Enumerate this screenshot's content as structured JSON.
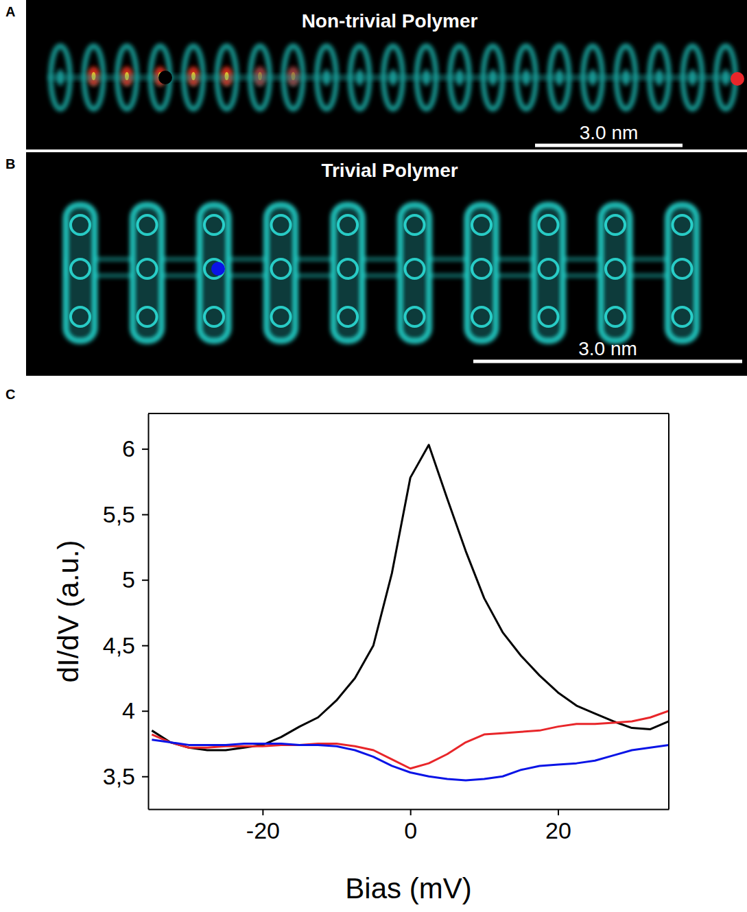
{
  "panels": [
    {
      "label": "A",
      "title": "Non-trivial Polymer",
      "scale_bar": "3.0 nm"
    },
    {
      "label": "B",
      "title": "Trivial Polymer",
      "scale_bar": "3.0 nm"
    }
  ],
  "chart_data": {
    "type": "line",
    "panel_label": "C",
    "x_label": "Bias (mV)",
    "y_label": "dI/dV (a.u.)",
    "x": [
      -35,
      -32.5,
      -30,
      -27.5,
      -25,
      -22.5,
      -20,
      -17.5,
      -15,
      -12.5,
      -10,
      -7.5,
      -5,
      -2.5,
      0,
      2.5,
      5,
      7.5,
      10,
      12.5,
      15,
      17.5,
      20,
      22.5,
      25,
      27.5,
      30,
      32.5,
      35
    ],
    "xlim": [
      -35.5,
      35
    ],
    "xticks": [
      -20,
      0,
      20
    ],
    "ylim": [
      3.25,
      6.27
    ],
    "yticks": [
      {
        "value": 3.5,
        "label": "3,5"
      },
      4,
      {
        "value": 4.5,
        "label": "4,5"
      },
      5,
      {
        "value": 5.5,
        "label": "5,5"
      },
      6
    ],
    "grid": false,
    "series": [
      {
        "color": "#000000",
        "values": [
          3.85,
          3.76,
          3.72,
          3.7,
          3.7,
          3.72,
          3.74,
          3.8,
          3.88,
          3.95,
          4.08,
          4.25,
          4.5,
          5.05,
          5.78,
          6.03,
          5.62,
          5.22,
          4.86,
          4.6,
          4.42,
          4.27,
          4.14,
          4.04,
          3.98,
          3.92,
          3.87,
          3.86,
          3.92
        ]
      },
      {
        "color": "#e8262a",
        "values": [
          3.82,
          3.76,
          3.72,
          3.72,
          3.73,
          3.73,
          3.73,
          3.74,
          3.74,
          3.75,
          3.75,
          3.73,
          3.7,
          3.63,
          3.56,
          3.6,
          3.67,
          3.76,
          3.82,
          3.83,
          3.84,
          3.85,
          3.88,
          3.9,
          3.9,
          3.91,
          3.92,
          3.95,
          4.0
        ]
      },
      {
        "color": "#0a14e6",
        "values": [
          3.78,
          3.76,
          3.74,
          3.74,
          3.74,
          3.75,
          3.75,
          3.75,
          3.74,
          3.74,
          3.73,
          3.7,
          3.65,
          3.58,
          3.53,
          3.5,
          3.48,
          3.47,
          3.48,
          3.5,
          3.55,
          3.58,
          3.59,
          3.6,
          3.62,
          3.66,
          3.7,
          3.72,
          3.74
        ]
      }
    ]
  }
}
